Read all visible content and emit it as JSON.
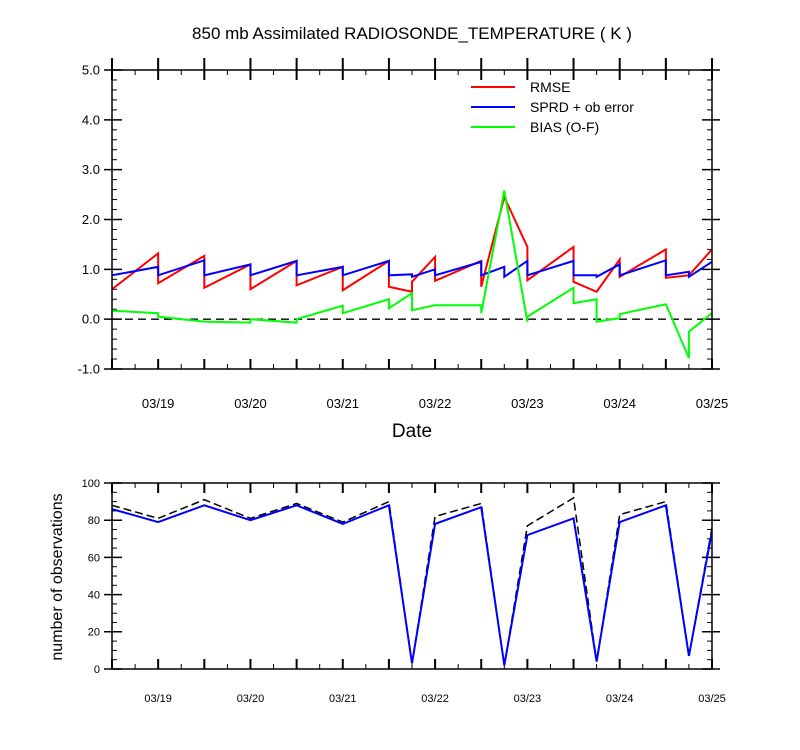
{
  "chart_data": [
    {
      "type": "line",
      "title": "850 mb Assimilated RADIOSONDE_TEMPERATURE ( K )",
      "xlabel": "Date",
      "ylabel": "",
      "ylim": [
        -1.0,
        5.0
      ],
      "yticks": [
        -1.0,
        0.0,
        1.0,
        2.0,
        3.0,
        4.0,
        5.0
      ],
      "ytick_labels": [
        "-1.0",
        "0.0",
        "1.0",
        "2.0",
        "3.0",
        "4.0",
        "5.0"
      ],
      "xlim": [
        18.5,
        25.0
      ],
      "xticks": [
        19,
        20,
        21,
        22,
        23,
        24,
        25
      ],
      "xtick_labels": [
        "03/19",
        "03/20",
        "03/21",
        "03/22",
        "03/23",
        "03/24",
        "03/25"
      ],
      "legend_position": "top-right",
      "reference_line": 0.0,
      "series": [
        {
          "name": "RMSE",
          "color": "#ff0000",
          "x": [
            18.5,
            19.0,
            19.0,
            19.5,
            19.5,
            20.0,
            20.0,
            20.5,
            20.5,
            21.0,
            21.0,
            21.5,
            21.5,
            21.75,
            21.75,
            22.0,
            22.0,
            22.5,
            22.5,
            22.75,
            23.0,
            23.0,
            23.5,
            23.5,
            23.75,
            24.0,
            24.0,
            24.5,
            24.5,
            24.75,
            25.0
          ],
          "y": [
            0.6,
            1.32,
            0.72,
            1.27,
            0.63,
            1.1,
            0.6,
            1.17,
            0.68,
            1.05,
            0.58,
            1.17,
            0.65,
            0.55,
            0.75,
            1.25,
            0.77,
            1.17,
            0.65,
            2.45,
            1.45,
            0.78,
            1.45,
            0.75,
            0.55,
            1.2,
            0.85,
            1.4,
            0.83,
            0.88,
            1.4
          ]
        },
        {
          "name": "SPRD + ob error",
          "color": "#0000ff",
          "x": [
            18.5,
            19.0,
            19.0,
            19.5,
            19.5,
            20.0,
            20.0,
            20.5,
            20.5,
            21.0,
            21.0,
            21.5,
            21.5,
            21.75,
            21.75,
            22.0,
            22.0,
            22.5,
            22.5,
            22.75,
            22.75,
            23.0,
            23.0,
            23.5,
            23.5,
            23.75,
            23.75,
            24.0,
            24.0,
            24.5,
            24.5,
            24.75,
            24.75,
            25.0
          ],
          "y": [
            0.88,
            1.05,
            0.88,
            1.18,
            0.88,
            1.1,
            0.88,
            1.17,
            0.88,
            1.05,
            0.88,
            1.17,
            0.88,
            0.9,
            0.85,
            1.0,
            0.88,
            1.15,
            0.88,
            1.05,
            0.85,
            1.17,
            0.88,
            1.17,
            0.88,
            0.88,
            0.85,
            1.1,
            0.88,
            1.18,
            0.88,
            0.95,
            0.85,
            1.15
          ]
        },
        {
          "name": "BIAS (O-F)",
          "color": "#00ff00",
          "x": [
            18.5,
            19.0,
            19.0,
            19.5,
            19.5,
            20.0,
            20.0,
            20.5,
            20.5,
            21.0,
            21.0,
            21.5,
            21.5,
            21.75,
            21.75,
            22.0,
            22.0,
            22.5,
            22.5,
            22.75,
            23.0,
            23.0,
            23.5,
            23.5,
            23.75,
            23.75,
            24.0,
            24.0,
            24.5,
            24.75,
            24.75,
            25.0
          ],
          "y": [
            0.17,
            0.12,
            0.05,
            -0.05,
            -0.05,
            -0.07,
            0.0,
            -0.07,
            0.0,
            0.27,
            0.12,
            0.4,
            0.22,
            0.52,
            0.18,
            0.28,
            0.28,
            0.28,
            0.12,
            2.58,
            -0.05,
            0.05,
            0.63,
            0.32,
            0.4,
            -0.05,
            0.02,
            0.1,
            0.3,
            -0.78,
            -0.25,
            0.12
          ]
        }
      ]
    },
    {
      "type": "line",
      "title": "",
      "xlabel": "",
      "ylabel": "number of observations",
      "ylim": [
        0,
        100
      ],
      "yticks": [
        0,
        20,
        40,
        60,
        80,
        100
      ],
      "ytick_labels": [
        "0",
        "20",
        "40",
        "60",
        "80",
        "100"
      ],
      "xlim": [
        18.5,
        25.0
      ],
      "xticks": [
        19,
        20,
        21,
        22,
        23,
        24,
        25
      ],
      "xtick_labels": [
        "03/19",
        "03/20",
        "03/21",
        "03/22",
        "03/23",
        "03/24",
        "03/25"
      ],
      "series": [
        {
          "color": "#000000",
          "dash": true,
          "x": [
            18.5,
            19.0,
            19.5,
            20.0,
            20.5,
            21.0,
            21.5,
            21.75,
            22.0,
            22.5,
            22.75,
            23.0,
            23.5,
            23.75,
            24.0,
            24.5,
            24.75,
            25.0
          ],
          "y": [
            88,
            81,
            91,
            81,
            89,
            79,
            90,
            3,
            82,
            89,
            2,
            77,
            92,
            4,
            83,
            90,
            7,
            76
          ]
        },
        {
          "color": "#0000ff",
          "x": [
            18.5,
            19.0,
            19.5,
            20.0,
            20.5,
            21.0,
            21.5,
            21.75,
            22.0,
            22.5,
            22.75,
            23.0,
            23.5,
            23.75,
            24.0,
            24.5,
            24.75,
            25.0
          ],
          "y": [
            86,
            79,
            88,
            80,
            88,
            78,
            88,
            3,
            78,
            87,
            2,
            72,
            81,
            4,
            79,
            88,
            7,
            74
          ]
        }
      ]
    }
  ]
}
